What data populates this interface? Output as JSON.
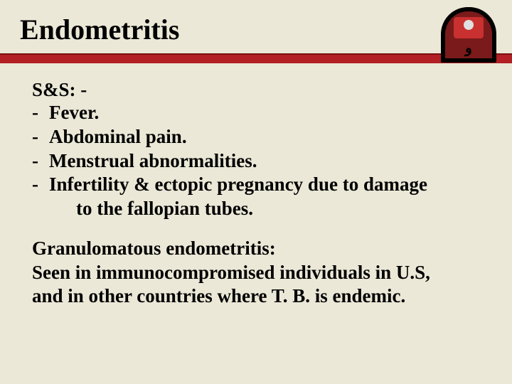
{
  "title": "Endometritis",
  "logo": {
    "char": "و"
  },
  "colors": {
    "background": "#ebe8d7",
    "bar": "#b21f24",
    "bar_border": "#7a0f12",
    "text": "#000000"
  },
  "section1": {
    "heading": "S&S: -",
    "bullets": [
      "Fever.",
      "Abdominal pain.",
      "Menstrual abnormalities.",
      "Infertility & ectopic pregnancy due to damage"
    ],
    "continuation": "to the fallopian tubes."
  },
  "section2": {
    "line1": "Granulomatous endometritis:",
    "line2": "Seen in immunocompromised individuals in U.S,",
    "line3_a": "and in other countries where T. B. is endemic",
    "line3_b": "."
  }
}
